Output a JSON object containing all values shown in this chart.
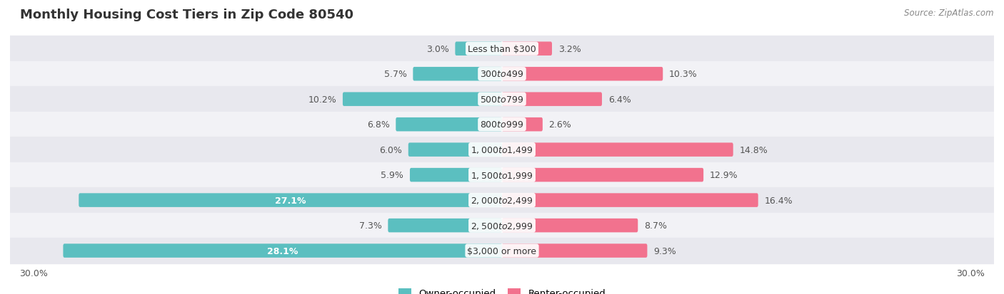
{
  "title": "Monthly Housing Cost Tiers in Zip Code 80540",
  "source": "Source: ZipAtlas.com",
  "categories": [
    "Less than $300",
    "$300 to $499",
    "$500 to $799",
    "$800 to $999",
    "$1,000 to $1,499",
    "$1,500 to $1,999",
    "$2,000 to $2,499",
    "$2,500 to $2,999",
    "$3,000 or more"
  ],
  "owner_values": [
    3.0,
    5.7,
    10.2,
    6.8,
    6.0,
    5.9,
    27.1,
    7.3,
    28.1
  ],
  "renter_values": [
    3.2,
    10.3,
    6.4,
    2.6,
    14.8,
    12.9,
    16.4,
    8.7,
    9.3
  ],
  "owner_color": "#5bbfc0",
  "renter_color": "#f2728e",
  "owner_color_light": "#a8dfe0",
  "renter_color_light": "#f9b8c8",
  "row_bg_dark": "#e8e8ee",
  "row_bg_light": "#f2f2f6",
  "max_val": 30.0,
  "title_fontsize": 13,
  "label_fontsize": 9,
  "tick_fontsize": 9,
  "legend_fontsize": 9.5,
  "source_fontsize": 8.5,
  "inside_label_threshold": 12.0
}
